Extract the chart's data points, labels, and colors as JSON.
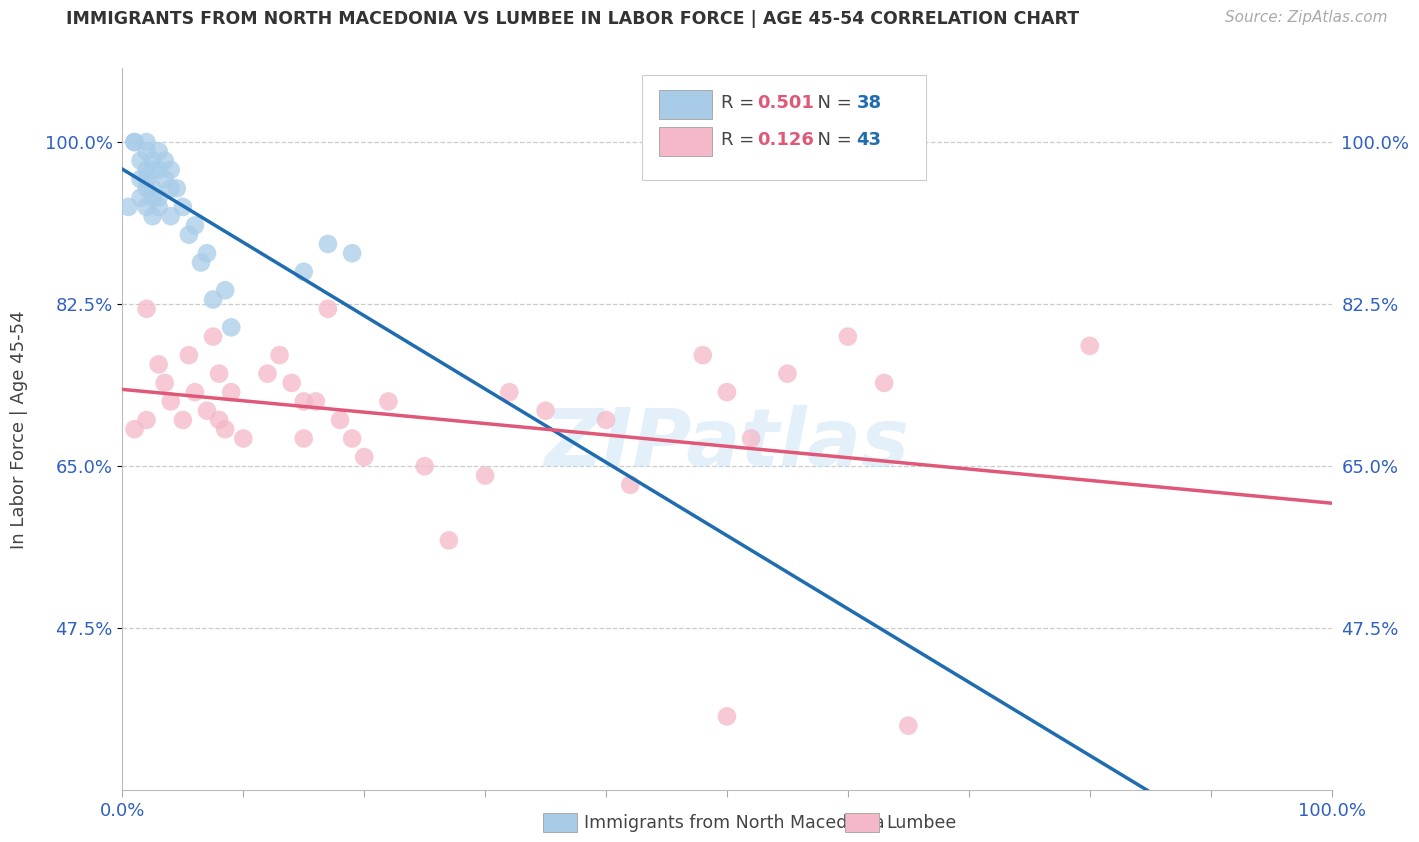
{
  "title": "IMMIGRANTS FROM NORTH MACEDONIA VS LUMBEE IN LABOR FORCE | AGE 45-54 CORRELATION CHART",
  "source": "Source: ZipAtlas.com",
  "ylabel": "In Labor Force | Age 45-54",
  "xlim": [
    0.0,
    1.0
  ],
  "ylim": [
    0.3,
    1.08
  ],
  "yticks": [
    0.475,
    0.65,
    0.825,
    1.0
  ],
  "ytick_labels": [
    "47.5%",
    "65.0%",
    "82.5%",
    "100.0%"
  ],
  "xticks": [
    0.0,
    0.1,
    0.2,
    0.3,
    0.4,
    0.5,
    0.6,
    0.7,
    0.8,
    0.9,
    1.0
  ],
  "blue_R": 0.501,
  "blue_N": 38,
  "pink_R": 0.126,
  "pink_N": 43,
  "blue_label": "Immigrants from North Macedonia",
  "pink_label": "Lumbee",
  "blue_color": "#a8cce8",
  "pink_color": "#f4b8c8",
  "blue_line_color": "#1f6cb0",
  "pink_line_color": "#e05878",
  "tick_label_color": "#3060c0",
  "blue_scatter_x": [
    0.005,
    0.01,
    0.01,
    0.015,
    0.015,
    0.015,
    0.02,
    0.02,
    0.02,
    0.02,
    0.02,
    0.02,
    0.025,
    0.025,
    0.025,
    0.025,
    0.025,
    0.03,
    0.03,
    0.03,
    0.03,
    0.035,
    0.035,
    0.04,
    0.04,
    0.04,
    0.045,
    0.05,
    0.055,
    0.06,
    0.065,
    0.07,
    0.075,
    0.085,
    0.09,
    0.15,
    0.17,
    0.19
  ],
  "blue_scatter_y": [
    0.93,
    1.0,
    1.0,
    0.98,
    0.96,
    0.94,
    1.0,
    0.99,
    0.97,
    0.96,
    0.95,
    0.93,
    0.98,
    0.97,
    0.95,
    0.94,
    0.92,
    0.99,
    0.97,
    0.94,
    0.93,
    0.98,
    0.96,
    0.97,
    0.95,
    0.92,
    0.95,
    0.93,
    0.9,
    0.91,
    0.87,
    0.88,
    0.83,
    0.84,
    0.8,
    0.86,
    0.89,
    0.88
  ],
  "pink_scatter_x": [
    0.01,
    0.02,
    0.02,
    0.03,
    0.035,
    0.04,
    0.05,
    0.055,
    0.06,
    0.07,
    0.075,
    0.08,
    0.08,
    0.085,
    0.09,
    0.1,
    0.12,
    0.13,
    0.14,
    0.15,
    0.15,
    0.16,
    0.17,
    0.18,
    0.19,
    0.2,
    0.22,
    0.25,
    0.27,
    0.3,
    0.32,
    0.35,
    0.4,
    0.42,
    0.48,
    0.5,
    0.52,
    0.55,
    0.6,
    0.63,
    0.65,
    0.8,
    0.5
  ],
  "pink_scatter_y": [
    0.69,
    0.82,
    0.7,
    0.76,
    0.74,
    0.72,
    0.7,
    0.77,
    0.73,
    0.71,
    0.79,
    0.75,
    0.7,
    0.69,
    0.73,
    0.68,
    0.75,
    0.77,
    0.74,
    0.72,
    0.68,
    0.72,
    0.82,
    0.7,
    0.68,
    0.66,
    0.72,
    0.65,
    0.57,
    0.64,
    0.73,
    0.71,
    0.7,
    0.63,
    0.77,
    0.73,
    0.68,
    0.75,
    0.79,
    0.74,
    0.37,
    0.78,
    0.38
  ]
}
